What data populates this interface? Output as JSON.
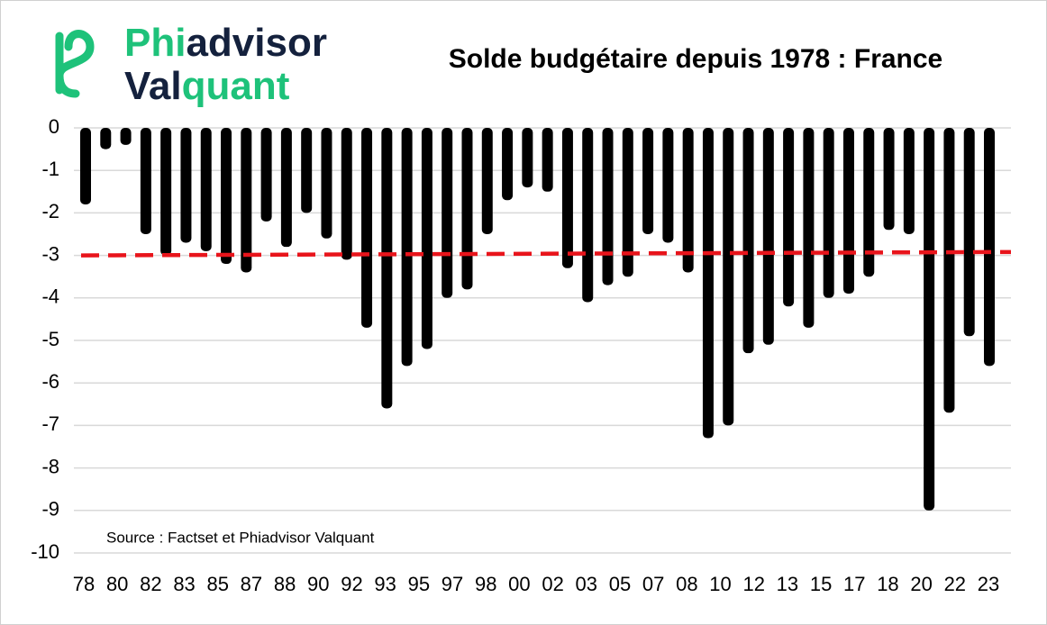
{
  "chart_data": {
    "type": "bar",
    "title": "Solde budgétaire depuis 1978  : France",
    "logo": {
      "line1_a": "Phi",
      "line1_b": "advisor",
      "line2_a": "Val",
      "line2_b": "quant"
    },
    "source": "Source : Factset et Phiadvisor Valquant",
    "x_labels": [
      "78",
      "80",
      "82",
      "83",
      "85",
      "87",
      "88",
      "90",
      "92",
      "93",
      "95",
      "97",
      "98",
      "00",
      "02",
      "03",
      "05",
      "07",
      "08",
      "10",
      "12",
      "13",
      "15",
      "17",
      "18",
      "20",
      "22",
      "23"
    ],
    "values": [
      -1.8,
      -0.5,
      -0.4,
      -2.5,
      -3.0,
      -2.7,
      -2.9,
      -3.2,
      -3.4,
      -2.2,
      -2.8,
      -2.0,
      -2.6,
      -3.1,
      -4.7,
      -6.6,
      -5.6,
      -5.2,
      -4.0,
      -3.8,
      -2.5,
      -1.7,
      -1.4,
      -1.5,
      -3.3,
      -4.1,
      -3.7,
      -3.5,
      -2.5,
      -2.7,
      -3.4,
      -7.3,
      -7.0,
      -5.3,
      -5.1,
      -4.2,
      -4.7,
      -4.0,
      -3.9,
      -3.5,
      -2.4,
      -2.5,
      -9.0,
      -6.7,
      -4.9,
      -5.6
    ],
    "color": "#000000",
    "trend_line": {
      "values": [
        -3.0,
        -2.92
      ],
      "color": "#e8141b"
    },
    "ylim": [
      -10,
      0
    ],
    "yticks": [
      0,
      -1,
      -2,
      -3,
      -4,
      -5,
      -6,
      -7,
      -8,
      -9,
      -10
    ],
    "grid": true
  }
}
